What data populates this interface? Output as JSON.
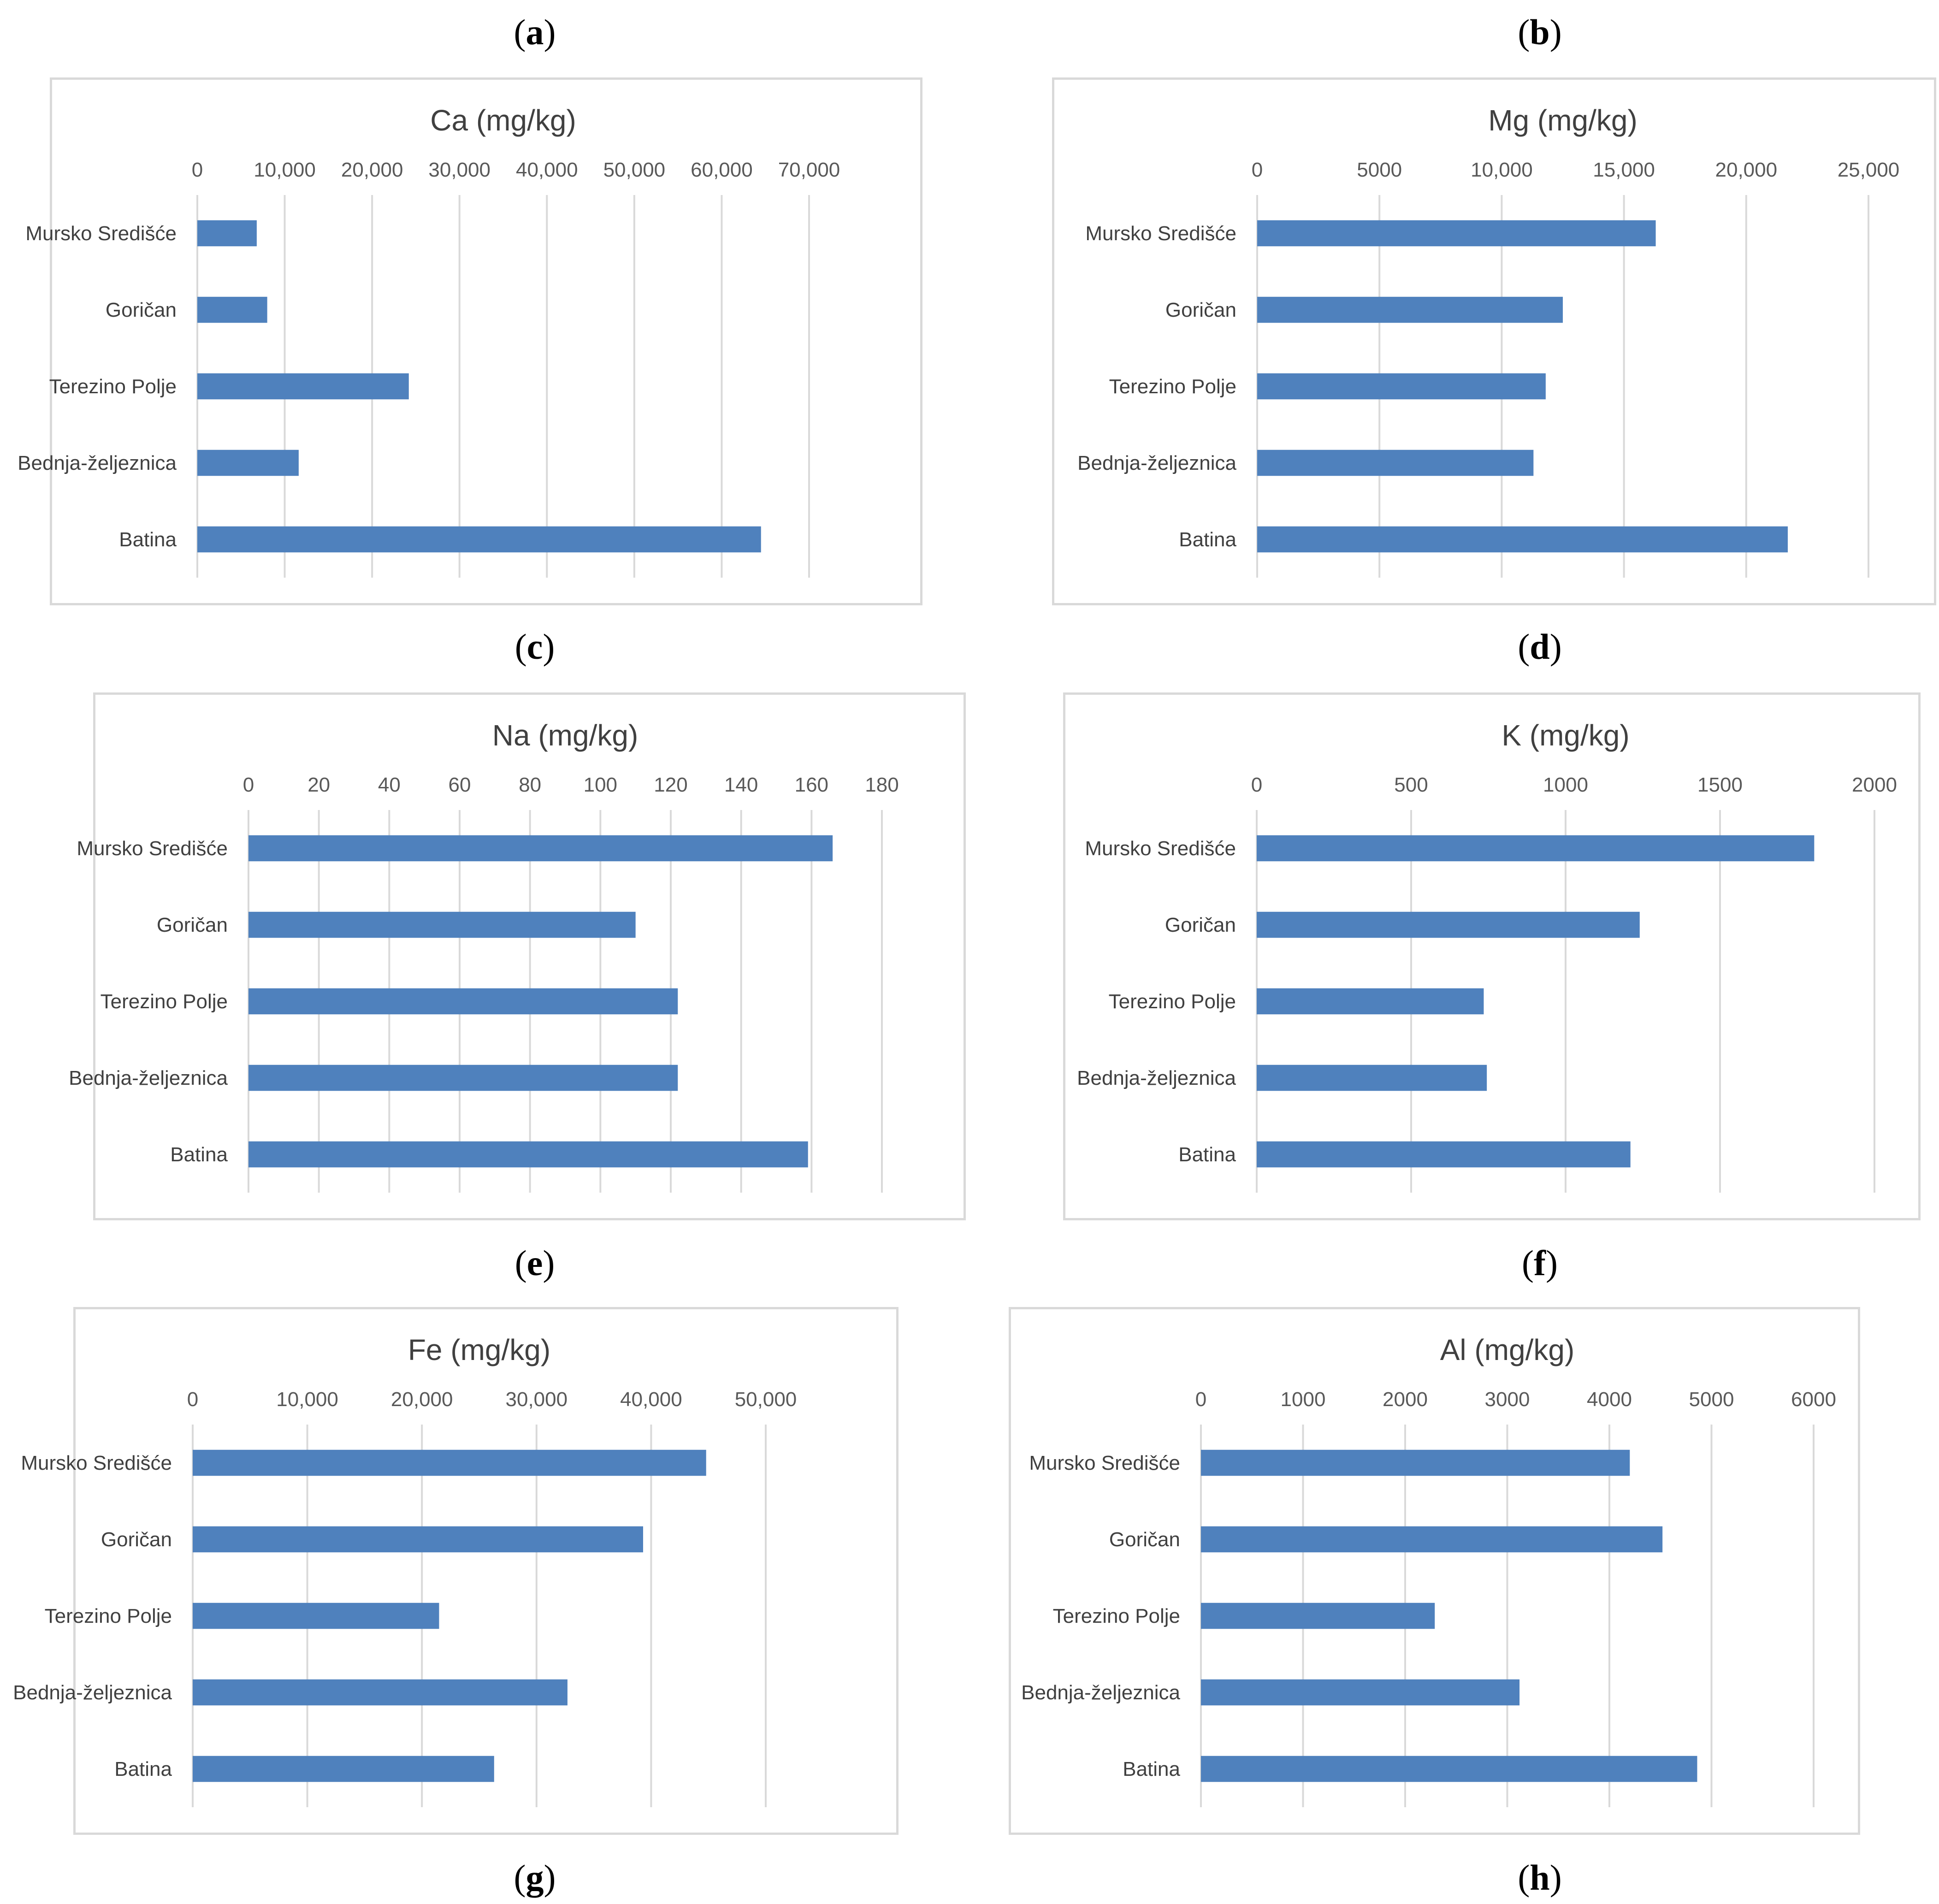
{
  "panel_labels": [
    "a",
    "b",
    "c",
    "d",
    "e",
    "f",
    "g",
    "h"
  ],
  "chart_data": [
    {
      "type": "bar",
      "orientation": "horizontal",
      "title": "Ca (mg/kg)",
      "categories": [
        "Mursko Središće",
        "Goričan",
        "Terezino Polje",
        "Bednja-željeznica",
        "Batina"
      ],
      "values": [
        6800,
        8000,
        24200,
        11600,
        64500
      ],
      "ticks": [
        0,
        10000,
        20000,
        30000,
        40000,
        50000,
        60000,
        70000
      ],
      "tick_labels": [
        "0",
        "10,000",
        "20,000",
        "30,000",
        "40,000",
        "50,000",
        "60,000",
        "70,000"
      ],
      "xlim": [
        0,
        70000
      ],
      "axis_position": "top",
      "color": "#4f81bd"
    },
    {
      "type": "bar",
      "orientation": "horizontal",
      "title": "Mg (mg/kg)",
      "categories": [
        "Mursko Središće",
        "Goričan",
        "Terezino Polje",
        "Bednja-željeznica",
        "Batina"
      ],
      "values": [
        16300,
        12500,
        11800,
        11300,
        21700
      ],
      "ticks": [
        0,
        5000,
        10000,
        15000,
        20000,
        25000
      ],
      "tick_labels": [
        "0",
        "5000",
        "10,000",
        "15,000",
        "20,000",
        "25,000"
      ],
      "xlim": [
        0,
        25000
      ],
      "axis_position": "top",
      "color": "#4f81bd"
    },
    {
      "type": "bar",
      "orientation": "horizontal",
      "title": "Na (mg/kg)",
      "categories": [
        "Mursko Središće",
        "Goričan",
        "Terezino Polje",
        "Bednja-željeznica",
        "Batina"
      ],
      "values": [
        166,
        110,
        122,
        122,
        159
      ],
      "ticks": [
        0,
        20,
        40,
        60,
        80,
        100,
        120,
        140,
        160,
        180
      ],
      "tick_labels": [
        "0",
        "20",
        "40",
        "60",
        "80",
        "100",
        "120",
        "140",
        "160",
        "180"
      ],
      "xlim": [
        0,
        180
      ],
      "axis_position": "top",
      "color": "#4f81bd"
    },
    {
      "type": "bar",
      "orientation": "horizontal",
      "title": "K (mg/kg)",
      "categories": [
        "Mursko Središće",
        "Goričan",
        "Terezino Polje",
        "Bednja-željeznica",
        "Batina"
      ],
      "values": [
        1805,
        1240,
        735,
        745,
        1210
      ],
      "ticks": [
        0,
        500,
        1000,
        1500,
        2000
      ],
      "tick_labels": [
        "0",
        "500",
        "1000",
        "1500",
        "2000"
      ],
      "xlim": [
        0,
        2000
      ],
      "axis_position": "top",
      "color": "#4f81bd"
    },
    {
      "type": "bar",
      "orientation": "horizontal",
      "title": "Fe (mg/kg)",
      "categories": [
        "Mursko Središće",
        "Goričan",
        "Terezino Polje",
        "Bednja-željeznica",
        "Batina"
      ],
      "values": [
        44800,
        39300,
        21500,
        32700,
        26300
      ],
      "ticks": [
        0,
        10000,
        20000,
        30000,
        40000,
        50000
      ],
      "tick_labels": [
        "0",
        "10,000",
        "20,000",
        "30,000",
        "40,000",
        "50,000"
      ],
      "xlim": [
        0,
        50000
      ],
      "axis_position": "top",
      "color": "#4f81bd"
    },
    {
      "type": "bar",
      "orientation": "horizontal",
      "title": "Al (mg/kg)",
      "categories": [
        "Mursko Središće",
        "Goričan",
        "Terezino Polje",
        "Bednja-željeznica",
        "Batina"
      ],
      "values": [
        4200,
        4520,
        2290,
        3120,
        4860
      ],
      "ticks": [
        0,
        1000,
        2000,
        3000,
        4000,
        5000,
        6000
      ],
      "tick_labels": [
        "0",
        "1000",
        "2000",
        "3000",
        "4000",
        "5000",
        "6000"
      ],
      "xlim": [
        0,
        6000
      ],
      "axis_position": "top",
      "color": "#4f81bd"
    }
  ]
}
